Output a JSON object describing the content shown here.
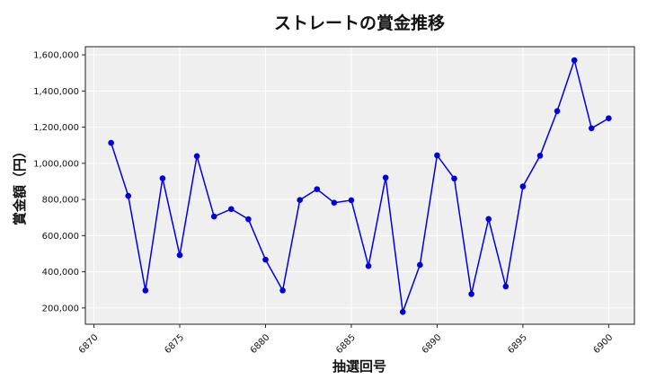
{
  "chart_data": {
    "type": "line",
    "title": "ストレートの賞金推移",
    "xlabel": "抽選回号",
    "ylabel": "賞金額（円）",
    "x": [
      6871,
      6872,
      6873,
      6874,
      6875,
      6876,
      6877,
      6878,
      6879,
      6880,
      6881,
      6882,
      6883,
      6884,
      6885,
      6886,
      6887,
      6888,
      6889,
      6890,
      6891,
      6892,
      6893,
      6894,
      6895,
      6896,
      6897,
      6898,
      6899,
      6900
    ],
    "series": [
      {
        "values": [
          1113000,
          820000,
          297000,
          917000,
          492000,
          1040000,
          706000,
          747000,
          691000,
          467000,
          297000,
          797000,
          857000,
          782000,
          796000,
          432000,
          921000,
          178000,
          438000,
          1044000,
          916000,
          277000,
          692000,
          319000,
          872000,
          1042000,
          1289000,
          1570000,
          1194000,
          1249000
        ]
      }
    ],
    "xlim": [
      6869.5,
      6901.5
    ],
    "ylim": [
      110000,
      1645000
    ],
    "xticks": [
      6870,
      6875,
      6880,
      6885,
      6890,
      6895,
      6900
    ],
    "xtick_labels": [
      "6870",
      "6875",
      "6880",
      "6885",
      "6890",
      "6895",
      "6900"
    ],
    "yticks": [
      200000,
      400000,
      600000,
      800000,
      1000000,
      1200000,
      1400000,
      1600000
    ],
    "ytick_labels": [
      "200,000",
      "400,000",
      "600,000",
      "800,000",
      "1,000,000",
      "1,200,000",
      "1,400,000",
      "1,600,000"
    ],
    "grid": true,
    "colors": {
      "line": "#0000dd",
      "marker": "#0000dd",
      "plot_bg": "#efefef",
      "grid": "#ffffff"
    }
  }
}
